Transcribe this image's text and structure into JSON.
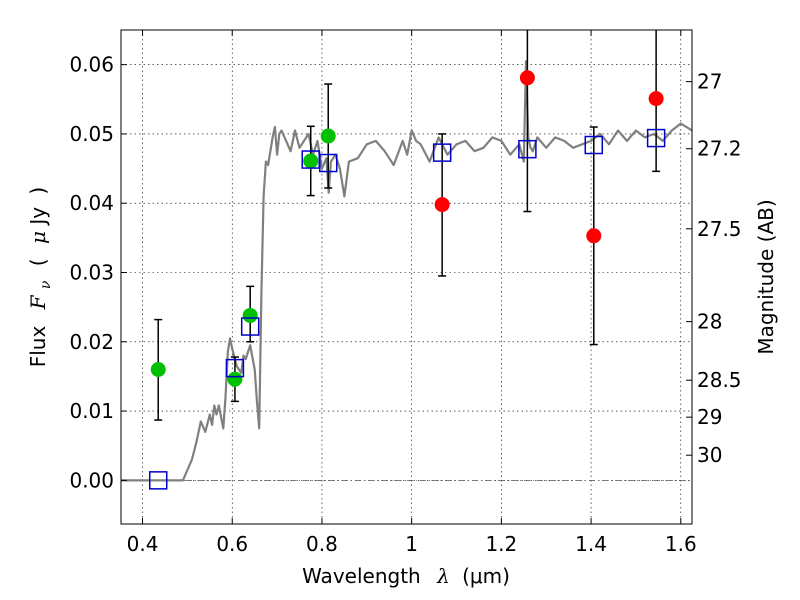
{
  "chart_data": {
    "type": "scatter",
    "title": "",
    "xlabel": "Wavelength λ (μm)",
    "xlabel_parts": {
      "word": "Wavelength",
      "symbol": "λ",
      "unit": "(μm)"
    },
    "ylabel_parts": {
      "word": "Flux",
      "symbol": "F",
      "subscript": "ν",
      "unit_open": "(",
      "unit_mu": "μ",
      "unit_rest": "Jy",
      "unit_close": ")"
    },
    "ylabel_right": "Magnitude (AB)",
    "xlim": [
      0.352,
      1.625
    ],
    "ylim": [
      -0.0063,
      0.065
    ],
    "grid": true,
    "x_ticks": [
      {
        "value": 0.4,
        "label": "0.4"
      },
      {
        "value": 0.6,
        "label": "0.6"
      },
      {
        "value": 0.8,
        "label": "0.8"
      },
      {
        "value": 1.0,
        "label": "1"
      },
      {
        "value": 1.2,
        "label": "1.2"
      },
      {
        "value": 1.4,
        "label": "1.4"
      },
      {
        "value": 1.6,
        "label": "1.6"
      }
    ],
    "y_ticks": [
      {
        "value": 0.0,
        "label": "0.00"
      },
      {
        "value": 0.01,
        "label": "0.01"
      },
      {
        "value": 0.02,
        "label": "0.02"
      },
      {
        "value": 0.03,
        "label": "0.03"
      },
      {
        "value": 0.04,
        "label": "0.04"
      },
      {
        "value": 0.05,
        "label": "0.05"
      },
      {
        "value": 0.06,
        "label": "0.06"
      }
    ],
    "right_ticks": [
      {
        "value": 27,
        "label": "27"
      },
      {
        "value": 27.2,
        "label": "27.2"
      },
      {
        "value": 27.5,
        "label": "27.5"
      },
      {
        "value": 28,
        "label": "28"
      },
      {
        "value": 28.5,
        "label": "28.5"
      },
      {
        "value": 29,
        "label": "29"
      },
      {
        "value": 30,
        "label": "30"
      }
    ],
    "zero_line": 0.0,
    "model_spectrum": {
      "color": "#808080",
      "x": [
        0.352,
        0.4,
        0.45,
        0.49,
        0.5,
        0.51,
        0.52,
        0.53,
        0.54,
        0.55,
        0.555,
        0.56,
        0.565,
        0.57,
        0.58,
        0.585,
        0.59,
        0.595,
        0.6,
        0.61,
        0.62,
        0.625,
        0.63,
        0.64,
        0.65,
        0.655,
        0.66,
        0.665,
        0.67,
        0.675,
        0.68,
        0.69,
        0.695,
        0.7,
        0.705,
        0.71,
        0.72,
        0.73,
        0.74,
        0.75,
        0.76,
        0.77,
        0.78,
        0.79,
        0.8,
        0.81,
        0.815,
        0.82,
        0.83,
        0.84,
        0.85,
        0.86,
        0.88,
        0.9,
        0.92,
        0.94,
        0.96,
        0.98,
        0.99,
        1.0,
        1.01,
        1.02,
        1.04,
        1.06,
        1.08,
        1.1,
        1.12,
        1.14,
        1.16,
        1.18,
        1.2,
        1.22,
        1.24,
        1.25,
        1.255,
        1.26,
        1.265,
        1.27,
        1.28,
        1.3,
        1.32,
        1.34,
        1.36,
        1.38,
        1.4,
        1.42,
        1.44,
        1.46,
        1.48,
        1.5,
        1.52,
        1.54,
        1.56,
        1.58,
        1.6,
        1.625
      ],
      "y": [
        0.0,
        0.0,
        0.0,
        0.0,
        0.0015,
        0.003,
        0.0055,
        0.0085,
        0.007,
        0.0095,
        0.008,
        0.0108,
        0.0095,
        0.0108,
        0.0075,
        0.012,
        0.0185,
        0.0205,
        0.019,
        0.0165,
        0.0155,
        0.018,
        0.0175,
        0.0195,
        0.016,
        0.0115,
        0.0075,
        0.027,
        0.041,
        0.046,
        0.0455,
        0.0495,
        0.051,
        0.047,
        0.05,
        0.0505,
        0.049,
        0.0475,
        0.0505,
        0.048,
        0.049,
        0.05,
        0.047,
        0.049,
        0.045,
        0.0465,
        0.0415,
        0.046,
        0.047,
        0.045,
        0.041,
        0.046,
        0.0465,
        0.0485,
        0.049,
        0.0475,
        0.0455,
        0.049,
        0.047,
        0.0505,
        0.049,
        0.0485,
        0.046,
        0.0495,
        0.047,
        0.0485,
        0.049,
        0.0475,
        0.048,
        0.0495,
        0.049,
        0.047,
        0.0485,
        0.046,
        0.0605,
        0.0495,
        0.048,
        0.0475,
        0.0495,
        0.048,
        0.0495,
        0.049,
        0.048,
        0.0485,
        0.049,
        0.05,
        0.0485,
        0.0505,
        0.049,
        0.0505,
        0.0495,
        0.05,
        0.049,
        0.0505,
        0.0515,
        0.0505
      ]
    },
    "series": [
      {
        "color": "#00c000",
        "marker": "circle",
        "points": [
          {
            "x": 0.435,
            "y": 0.016,
            "err_low": 0.0073,
            "err_high": 0.0072
          },
          {
            "x": 0.606,
            "y": 0.0146,
            "err_low": 0.0032,
            "err_high": 0.0032
          },
          {
            "x": 0.64,
            "y": 0.0238,
            "err_low": 0.0038,
            "err_high": 0.0042
          },
          {
            "x": 0.775,
            "y": 0.0461,
            "err_low": 0.005,
            "err_high": 0.005
          },
          {
            "x": 0.814,
            "y": 0.0497,
            "err_low": 0.0075,
            "err_high": 0.0075
          }
        ]
      },
      {
        "color": "#ff0000",
        "marker": "circle",
        "points": [
          {
            "x": 1.068,
            "y": 0.0398,
            "err_low": 0.0103,
            "err_high": 0.0102
          },
          {
            "x": 1.258,
            "y": 0.0581,
            "err_low": 0.0193,
            "err_high": 0.0193
          },
          {
            "x": 1.406,
            "y": 0.0353,
            "err_low": 0.0157,
            "err_high": 0.0157
          },
          {
            "x": 1.545,
            "y": 0.0551,
            "err_low": 0.0105,
            "err_high": 0.0105
          }
        ]
      },
      {
        "color": "#0000cc",
        "marker": "square",
        "points": [
          {
            "x": 0.435,
            "y": 0.0
          },
          {
            "x": 0.606,
            "y": 0.0162
          },
          {
            "x": 0.64,
            "y": 0.0222
          },
          {
            "x": 0.775,
            "y": 0.0463
          },
          {
            "x": 0.814,
            "y": 0.0458
          },
          {
            "x": 1.068,
            "y": 0.0473
          },
          {
            "x": 1.258,
            "y": 0.0478
          },
          {
            "x": 1.406,
            "y": 0.0484
          },
          {
            "x": 1.545,
            "y": 0.0494
          }
        ]
      }
    ]
  }
}
